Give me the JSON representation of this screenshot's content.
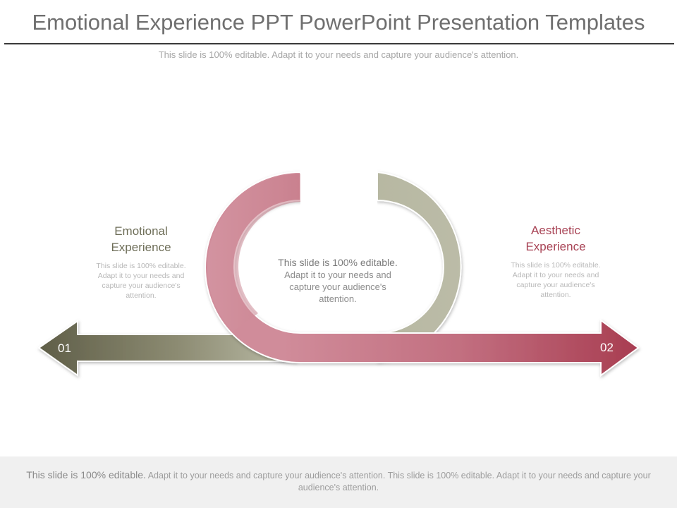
{
  "slide": {
    "title": "Emotional Experience PPT PowerPoint Presentation Templates",
    "subtitle": "This slide is 100% editable. Adapt it to your needs and capture your audience's attention."
  },
  "diagram": {
    "left": {
      "number": "01",
      "heading_line1": "Emotional",
      "heading_line2": "Experience",
      "body_lines": [
        "This slide is 100% editable.",
        "Adapt it to your needs and",
        "capture your audience's",
        "attention."
      ]
    },
    "right": {
      "number": "02",
      "heading_line1": "Aesthetic",
      "heading_line2": "Experience",
      "body_lines": [
        "This slide is 100% editable.",
        "Adapt it to your needs and",
        "capture your audience's",
        "attention."
      ]
    },
    "center": {
      "line1": "This slide is 100% editable.",
      "lines": [
        "Adapt it to your needs and",
        "capture your audience's",
        "attention."
      ]
    },
    "colors": {
      "olive": "#6b6a52",
      "sage": "#b9baa5",
      "rose": "#cf8a98",
      "crimson": "#ab4052"
    }
  },
  "footer": {
    "lead": "This slide is 100% editable.",
    "text": "Adapt it to your needs and capture your audience's attention. This slide is 100% editable. Adapt it to your needs and capture your audience's attention."
  }
}
